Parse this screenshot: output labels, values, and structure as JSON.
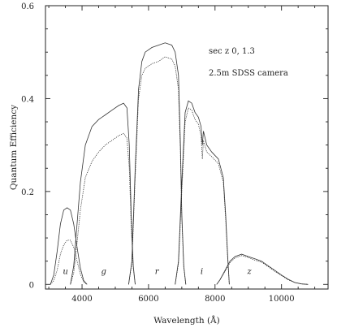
{
  "chart_data": {
    "type": "line",
    "title": "",
    "xlabel": "Wavelength (Å)",
    "ylabel": "Quantum Efficiency",
    "xlim": [
      2900,
      11400
    ],
    "ylim": [
      -0.01,
      0.6
    ],
    "xticks": [
      4000,
      6000,
      8000,
      10000
    ],
    "xtick_labels": [
      "4000",
      "6000",
      "8000",
      "10000"
    ],
    "yticks": [
      0,
      0.2,
      0.4,
      0.6
    ],
    "ytick_labels": [
      "0",
      "0.2",
      "0.4",
      "0.6"
    ],
    "annotations": [
      "sec z    0, 1.3",
      "2.5m SDSS camera"
    ],
    "grid": false,
    "series": [
      {
        "band": "u",
        "airmass": 0,
        "points": [
          [
            3050,
            0
          ],
          [
            3150,
            0.02
          ],
          [
            3250,
            0.07
          ],
          [
            3350,
            0.13
          ],
          [
            3450,
            0.16
          ],
          [
            3550,
            0.165
          ],
          [
            3650,
            0.16
          ],
          [
            3750,
            0.13
          ],
          [
            3850,
            0.08
          ],
          [
            3950,
            0.035
          ],
          [
            4050,
            0.008
          ],
          [
            4150,
            0
          ]
        ]
      },
      {
        "band": "u",
        "airmass": 1.3,
        "points": [
          [
            3050,
            0
          ],
          [
            3150,
            0.008
          ],
          [
            3250,
            0.03
          ],
          [
            3350,
            0.065
          ],
          [
            3450,
            0.085
          ],
          [
            3550,
            0.095
          ],
          [
            3650,
            0.095
          ],
          [
            3750,
            0.08
          ],
          [
            3850,
            0.05
          ],
          [
            3950,
            0.022
          ],
          [
            4050,
            0.005
          ],
          [
            4150,
            0
          ]
        ]
      },
      {
        "band": "g",
        "airmass": 0,
        "points": [
          [
            3650,
            0
          ],
          [
            3750,
            0.04
          ],
          [
            3850,
            0.13
          ],
          [
            3950,
            0.22
          ],
          [
            4100,
            0.3
          ],
          [
            4300,
            0.34
          ],
          [
            4500,
            0.355
          ],
          [
            4700,
            0.365
          ],
          [
            4900,
            0.375
          ],
          [
            5100,
            0.385
          ],
          [
            5250,
            0.39
          ],
          [
            5350,
            0.38
          ],
          [
            5420,
            0.3
          ],
          [
            5480,
            0.15
          ],
          [
            5540,
            0.04
          ],
          [
            5600,
            0
          ]
        ]
      },
      {
        "band": "g",
        "airmass": 1.3,
        "points": [
          [
            3650,
            0
          ],
          [
            3750,
            0.025
          ],
          [
            3850,
            0.09
          ],
          [
            3950,
            0.16
          ],
          [
            4100,
            0.23
          ],
          [
            4300,
            0.265
          ],
          [
            4500,
            0.285
          ],
          [
            4700,
            0.3
          ],
          [
            4900,
            0.31
          ],
          [
            5100,
            0.32
          ],
          [
            5250,
            0.325
          ],
          [
            5350,
            0.315
          ],
          [
            5420,
            0.25
          ],
          [
            5480,
            0.125
          ],
          [
            5540,
            0.035
          ],
          [
            5600,
            0
          ]
        ]
      },
      {
        "band": "r",
        "airmass": 0,
        "points": [
          [
            5400,
            0
          ],
          [
            5500,
            0.05
          ],
          [
            5600,
            0.25
          ],
          [
            5700,
            0.42
          ],
          [
            5800,
            0.48
          ],
          [
            5900,
            0.5
          ],
          [
            6100,
            0.51
          ],
          [
            6300,
            0.515
          ],
          [
            6500,
            0.52
          ],
          [
            6700,
            0.515
          ],
          [
            6800,
            0.5
          ],
          [
            6900,
            0.45
          ],
          [
            6960,
            0.3
          ],
          [
            7000,
            0.15
          ],
          [
            7060,
            0.04
          ],
          [
            7120,
            0
          ]
        ]
      },
      {
        "band": "r",
        "airmass": 1.3,
        "points": [
          [
            5400,
            0
          ],
          [
            5500,
            0.045
          ],
          [
            5600,
            0.23
          ],
          [
            5700,
            0.4
          ],
          [
            5800,
            0.45
          ],
          [
            5900,
            0.465
          ],
          [
            6100,
            0.475
          ],
          [
            6300,
            0.48
          ],
          [
            6500,
            0.49
          ],
          [
            6700,
            0.485
          ],
          [
            6800,
            0.47
          ],
          [
            6900,
            0.42
          ],
          [
            6960,
            0.28
          ],
          [
            7000,
            0.14
          ],
          [
            7060,
            0.037
          ],
          [
            7120,
            0
          ]
        ]
      },
      {
        "band": "i",
        "airmass": 0,
        "points": [
          [
            6800,
            0
          ],
          [
            6900,
            0.05
          ],
          [
            7000,
            0.22
          ],
          [
            7100,
            0.37
          ],
          [
            7200,
            0.395
          ],
          [
            7300,
            0.39
          ],
          [
            7400,
            0.37
          ],
          [
            7500,
            0.36
          ],
          [
            7580,
            0.34
          ],
          [
            7620,
            0.3
          ],
          [
            7650,
            0.33
          ],
          [
            7750,
            0.3
          ],
          [
            7900,
            0.285
          ],
          [
            8100,
            0.27
          ],
          [
            8250,
            0.23
          ],
          [
            8320,
            0.15
          ],
          [
            8380,
            0.06
          ],
          [
            8430,
            0
          ]
        ]
      },
      {
        "band": "i",
        "airmass": 1.3,
        "points": [
          [
            6800,
            0
          ],
          [
            6900,
            0.045
          ],
          [
            7000,
            0.2
          ],
          [
            7100,
            0.35
          ],
          [
            7200,
            0.38
          ],
          [
            7300,
            0.375
          ],
          [
            7400,
            0.355
          ],
          [
            7500,
            0.345
          ],
          [
            7580,
            0.32
          ],
          [
            7620,
            0.27
          ],
          [
            7650,
            0.31
          ],
          [
            7750,
            0.285
          ],
          [
            7900,
            0.275
          ],
          [
            8100,
            0.26
          ],
          [
            8250,
            0.22
          ],
          [
            8320,
            0.14
          ],
          [
            8380,
            0.055
          ],
          [
            8430,
            0
          ]
        ]
      },
      {
        "band": "z",
        "airmass": 0,
        "points": [
          [
            8050,
            0
          ],
          [
            8150,
            0.01
          ],
          [
            8300,
            0.03
          ],
          [
            8450,
            0.05
          ],
          [
            8600,
            0.06
          ],
          [
            8800,
            0.065
          ],
          [
            9000,
            0.06
          ],
          [
            9200,
            0.055
          ],
          [
            9400,
            0.05
          ],
          [
            9600,
            0.04
          ],
          [
            9800,
            0.03
          ],
          [
            10000,
            0.02
          ],
          [
            10200,
            0.011
          ],
          [
            10400,
            0.004
          ],
          [
            10600,
            0.001
          ],
          [
            10800,
            0
          ]
        ]
      },
      {
        "band": "z",
        "airmass": 1.3,
        "points": [
          [
            8050,
            0
          ],
          [
            8150,
            0.01
          ],
          [
            8300,
            0.028
          ],
          [
            8450,
            0.047
          ],
          [
            8600,
            0.057
          ],
          [
            8800,
            0.062
          ],
          [
            9000,
            0.058
          ],
          [
            9200,
            0.052
          ],
          [
            9400,
            0.048
          ],
          [
            9600,
            0.038
          ],
          [
            9800,
            0.028
          ],
          [
            10000,
            0.019
          ],
          [
            10200,
            0.01
          ],
          [
            10400,
            0.004
          ],
          [
            10600,
            0.001
          ],
          [
            10800,
            0
          ]
        ]
      }
    ],
    "band_labels": [
      {
        "text": "u",
        "x": 3500,
        "y": 0.015
      },
      {
        "text": "g",
        "x": 4650,
        "y": 0.015
      },
      {
        "text": "r",
        "x": 6250,
        "y": 0.015
      },
      {
        "text": "i",
        "x": 7600,
        "y": 0.015
      },
      {
        "text": "z",
        "x": 9030,
        "y": 0.015
      }
    ]
  }
}
